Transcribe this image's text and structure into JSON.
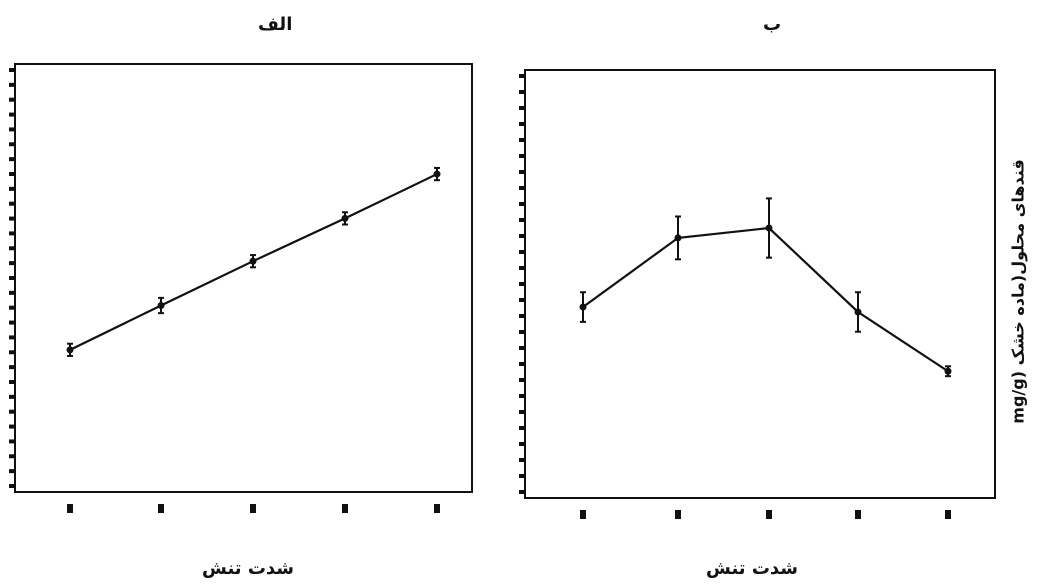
{
  "chart_data": [
    {
      "type": "line",
      "title": "الف",
      "xlabel": "شدت تنش",
      "ylabel": "",
      "x": [
        1,
        2,
        3,
        4,
        5
      ],
      "y": [
        9.3,
        12.2,
        15.1,
        17.9,
        20.8
      ],
      "y_err": [
        0.4,
        0.5,
        0.4,
        0.4,
        0.4
      ],
      "ylim": [
        0,
        28
      ],
      "grid": false,
      "line_color": "#111111"
    },
    {
      "type": "line",
      "title": "ب",
      "xlabel": "شدت تنش",
      "ylabel": "mg/g) قندهای محلول(ماده خشک",
      "x": [
        1,
        2,
        3,
        4,
        5
      ],
      "y": [
        11.6,
        15.8,
        16.4,
        11.3,
        7.7
      ],
      "y_err": [
        0.9,
        1.3,
        1.8,
        1.2,
        0.3
      ],
      "ylim": [
        0,
        26
      ],
      "grid": false,
      "line_color": "#111111"
    }
  ]
}
